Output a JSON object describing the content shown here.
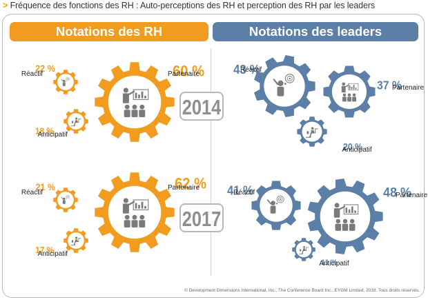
{
  "title": "Fréquence des fonctions des RH : Auto-perceptions des RH et perception des RH par les leaders",
  "footer": "© Development Dimensions International, Inc., The Conference Board Inc., EYGM Limited, 2018. Tous droits réservés.",
  "colors": {
    "hr": "#f29c1f",
    "leaders": "#5b7fa6",
    "year_text": "#8f8f8f",
    "icon": "#7a7a7a"
  },
  "chart_data": {
    "type": "other",
    "title": "Fréquence des fonctions des RH : Auto-perceptions des RH et perception des RH par les leaders",
    "groups": [
      {
        "key": "rh",
        "label": "Notations des RH"
      },
      {
        "key": "leaders",
        "label": "Notations des leaders"
      }
    ],
    "years": [
      "2014",
      "2017"
    ],
    "categories": [
      "Réactif",
      "Partenaire",
      "Anticipatif"
    ],
    "series": [
      {
        "group": "rh",
        "year": "2014",
        "values": [
          22,
          60,
          18
        ]
      },
      {
        "group": "leaders",
        "year": "2014",
        "values": [
          43,
          37,
          20
        ]
      },
      {
        "group": "rh",
        "year": "2017",
        "values": [
          21,
          62,
          17
        ]
      },
      {
        "group": "leaders",
        "year": "2017",
        "values": [
          41,
          48,
          11
        ]
      }
    ],
    "value_labels": {
      "rh_2014": [
        "22 %",
        "60 %",
        "18 %"
      ],
      "leaders_2014": [
        "43 %",
        "37 %",
        "20 %"
      ],
      "rh_2017": [
        "21 %",
        "62 %",
        "17 %"
      ],
      "leaders_2017": [
        "41 %",
        "48 %",
        "11 %"
      ]
    }
  }
}
